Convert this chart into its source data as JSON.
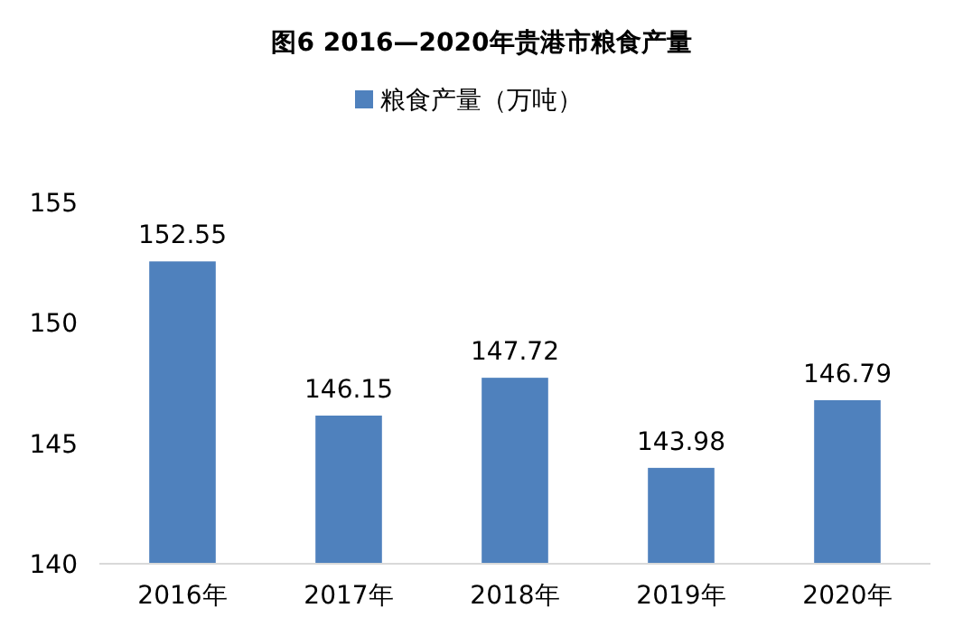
{
  "chart_data": {
    "type": "bar",
    "title": "图6   2016—2020年贵港市粮食产量",
    "categories": [
      "2016年",
      "2017年",
      "2018年",
      "2019年",
      "2020年"
    ],
    "series": [
      {
        "name": "粮食产量（万吨）",
        "color": "#4f81bd",
        "values": [
          152.55,
          146.15,
          147.72,
          143.98,
          146.79
        ]
      }
    ],
    "ylim": [
      140,
      155
    ],
    "yticks": [
      140,
      145,
      150,
      155
    ],
    "data_labels": true,
    "legend": "top",
    "grid": false
  }
}
